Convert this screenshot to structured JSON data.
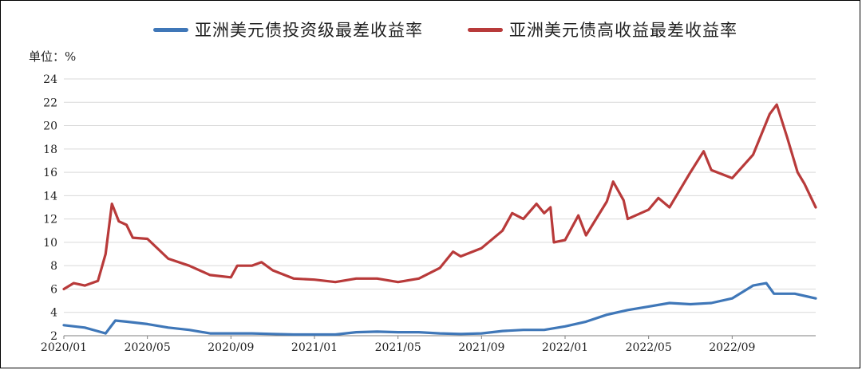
{
  "chart_data": {
    "type": "line",
    "title": "",
    "unit_label": "单位：%",
    "ylim": [
      2,
      24
    ],
    "yticks": [
      2,
      4,
      6,
      8,
      10,
      12,
      14,
      16,
      18,
      20,
      22,
      24
    ],
    "xlim": [
      "2020/01",
      "2022/12"
    ],
    "xticks": [
      "2020/01",
      "2020/05",
      "2020/09",
      "2021/01",
      "2021/05",
      "2021/09",
      "2022/01",
      "2022/05",
      "2022/09"
    ],
    "grid": "horizontal",
    "legend_position": "top",
    "series": [
      {
        "name": "亚洲美元债投资级最差收益率",
        "color": "#3F77B8",
        "points": [
          [
            "2020/01",
            2.9
          ],
          [
            "2020/02",
            2.7
          ],
          [
            "2020/03",
            2.2
          ],
          [
            "2020/03/15",
            3.3
          ],
          [
            "2020/04",
            3.2
          ],
          [
            "2020/05",
            3.0
          ],
          [
            "2020/06",
            2.7
          ],
          [
            "2020/07",
            2.5
          ],
          [
            "2020/08",
            2.2
          ],
          [
            "2020/09",
            2.2
          ],
          [
            "2020/10",
            2.2
          ],
          [
            "2020/11",
            2.15
          ],
          [
            "2020/12",
            2.1
          ],
          [
            "2021/01",
            2.1
          ],
          [
            "2021/02",
            2.1
          ],
          [
            "2021/03",
            2.3
          ],
          [
            "2021/04",
            2.35
          ],
          [
            "2021/05",
            2.3
          ],
          [
            "2021/06",
            2.3
          ],
          [
            "2021/07",
            2.2
          ],
          [
            "2021/08",
            2.15
          ],
          [
            "2021/09",
            2.2
          ],
          [
            "2021/10",
            2.4
          ],
          [
            "2021/11",
            2.5
          ],
          [
            "2021/12",
            2.5
          ],
          [
            "2022/01",
            2.8
          ],
          [
            "2022/02",
            3.2
          ],
          [
            "2022/03",
            3.8
          ],
          [
            "2022/04",
            4.2
          ],
          [
            "2022/05",
            4.5
          ],
          [
            "2022/06",
            4.8
          ],
          [
            "2022/07",
            4.7
          ],
          [
            "2022/08",
            4.8
          ],
          [
            "2022/09",
            5.2
          ],
          [
            "2022/10",
            6.3
          ],
          [
            "2022/10/20",
            6.5
          ],
          [
            "2022/11",
            5.6
          ],
          [
            "2022/12",
            5.6
          ],
          [
            "2022/12/31",
            5.2
          ]
        ]
      },
      {
        "name": "亚洲美元债高收益最差收益率",
        "color": "#B83A3A",
        "points": [
          [
            "2020/01",
            6.0
          ],
          [
            "2020/01/15",
            6.5
          ],
          [
            "2020/02",
            6.3
          ],
          [
            "2020/02/20",
            6.7
          ],
          [
            "2020/03",
            9.0
          ],
          [
            "2020/03/10",
            13.3
          ],
          [
            "2020/03/20",
            11.8
          ],
          [
            "2020/04",
            11.5
          ],
          [
            "2020/04/10",
            10.4
          ],
          [
            "2020/05",
            10.3
          ],
          [
            "2020/06",
            8.6
          ],
          [
            "2020/07",
            8.0
          ],
          [
            "2020/08",
            7.2
          ],
          [
            "2020/09",
            7.0
          ],
          [
            "2020/09/10",
            8.0
          ],
          [
            "2020/10",
            8.0
          ],
          [
            "2020/10/15",
            8.3
          ],
          [
            "2020/11",
            7.6
          ],
          [
            "2020/12",
            6.9
          ],
          [
            "2021/01",
            6.8
          ],
          [
            "2021/02",
            6.6
          ],
          [
            "2021/03",
            6.9
          ],
          [
            "2021/04",
            6.9
          ],
          [
            "2021/05",
            6.6
          ],
          [
            "2021/06",
            6.9
          ],
          [
            "2021/07",
            7.8
          ],
          [
            "2021/07/20",
            9.2
          ],
          [
            "2021/08",
            8.8
          ],
          [
            "2021/09",
            9.5
          ],
          [
            "2021/10",
            11.0
          ],
          [
            "2021/10/15",
            12.5
          ],
          [
            "2021/11",
            12.0
          ],
          [
            "2021/11/20",
            13.3
          ],
          [
            "2021/12",
            12.5
          ],
          [
            "2021/12/10",
            13.0
          ],
          [
            "2021/12/15",
            10.0
          ],
          [
            "2022/01",
            10.2
          ],
          [
            "2022/01/20",
            12.3
          ],
          [
            "2022/02",
            10.6
          ],
          [
            "2022/03",
            13.5
          ],
          [
            "2022/03/10",
            15.2
          ],
          [
            "2022/03/25",
            13.6
          ],
          [
            "2022/04",
            12.0
          ],
          [
            "2022/05",
            12.8
          ],
          [
            "2022/05/15",
            13.8
          ],
          [
            "2022/06",
            13.0
          ],
          [
            "2022/07",
            16.0
          ],
          [
            "2022/07/20",
            17.8
          ],
          [
            "2022/08",
            16.2
          ],
          [
            "2022/09",
            15.5
          ],
          [
            "2022/10",
            17.5
          ],
          [
            "2022/10/25",
            21.0
          ],
          [
            "2022/11/05",
            21.8
          ],
          [
            "2022/11/20",
            19.0
          ],
          [
            "2022/12/05",
            16.0
          ],
          [
            "2022/12/15",
            15.0
          ],
          [
            "2022/12/31",
            13.0
          ]
        ]
      }
    ]
  }
}
